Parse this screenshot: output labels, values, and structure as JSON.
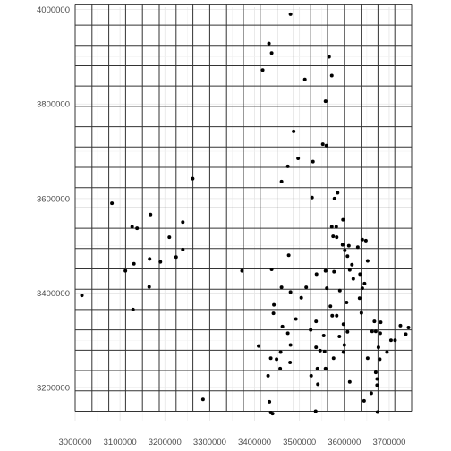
{
  "chart_data": {
    "type": "scatter",
    "title": "",
    "xlabel": "",
    "ylabel": "",
    "xlim": [
      3000000,
      3750000
    ],
    "ylim": [
      3130000,
      4005000
    ],
    "x_ticks": [
      3000000,
      3100000,
      3200000,
      3300000,
      3400000,
      3500000,
      3600000,
      3700000
    ],
    "x_tick_labels": [
      "3000000",
      "3100000",
      "3200000",
      "3300000",
      "3400000",
      "3500000",
      "3600000",
      "3700000"
    ],
    "y_ticks": [
      3200000,
      3400000,
      3600000,
      3800000,
      4000000
    ],
    "y_tick_labels": [
      "3200000",
      "3400000",
      "3600000",
      "3800000",
      "4000000"
    ],
    "background_grid": true,
    "overlay_grid": {
      "x_lines": [
        3000000,
        3037500,
        3075000,
        3112500,
        3150000,
        3187500,
        3225000,
        3262500,
        3300000,
        3337500,
        3375000,
        3412500,
        3450000,
        3487500,
        3525000,
        3562500,
        3600000,
        3637500,
        3675000,
        3712500,
        3750000
      ],
      "y_lines": [
        3150000,
        3193000,
        3236000,
        3279000,
        3322000,
        3365000,
        3408000,
        3451000,
        3494000,
        3537000,
        3580000,
        3623000,
        3666000,
        3709000,
        3752000,
        3795000,
        3838000,
        3881000,
        3924000,
        3967000,
        4010000
      ]
    },
    "points": [
      [
        3480000,
        3990000
      ],
      [
        3432000,
        3928000
      ],
      [
        3438000,
        3908000
      ],
      [
        3418000,
        3872000
      ],
      [
        3566000,
        3900000
      ],
      [
        3572000,
        3860000
      ],
      [
        3512000,
        3852000
      ],
      [
        3558000,
        3806000
      ],
      [
        3487000,
        3742000
      ],
      [
        3552000,
        3715000
      ],
      [
        3560000,
        3712000
      ],
      [
        3497000,
        3685000
      ],
      [
        3530000,
        3678000
      ],
      [
        3474000,
        3668000
      ],
      [
        3460000,
        3636000
      ],
      [
        3262000,
        3642000
      ],
      [
        3528000,
        3602000
      ],
      [
        3585000,
        3612000
      ],
      [
        3578000,
        3600000
      ],
      [
        3082000,
        3590000
      ],
      [
        3168000,
        3566000
      ],
      [
        3240000,
        3550000
      ],
      [
        3597000,
        3555000
      ],
      [
        3127000,
        3540000
      ],
      [
        3138000,
        3537000
      ],
      [
        3572000,
        3540000
      ],
      [
        3582000,
        3540000
      ],
      [
        3210000,
        3518000
      ],
      [
        3575000,
        3520000
      ],
      [
        3583000,
        3518000
      ],
      [
        3640000,
        3513000
      ],
      [
        3648000,
        3511000
      ],
      [
        3596000,
        3502000
      ],
      [
        3610000,
        3500000
      ],
      [
        3601000,
        3490000
      ],
      [
        3630000,
        3497000
      ],
      [
        3240000,
        3492000
      ],
      [
        3225000,
        3476000
      ],
      [
        3166000,
        3472000
      ],
      [
        3190000,
        3466000
      ],
      [
        3131000,
        3462000
      ],
      [
        3607000,
        3478000
      ],
      [
        3617000,
        3460000
      ],
      [
        3476000,
        3480000
      ],
      [
        3652000,
        3468000
      ],
      [
        3612000,
        3449000
      ],
      [
        3635000,
        3440000
      ],
      [
        3112000,
        3447000
      ],
      [
        3372000,
        3447000
      ],
      [
        3438000,
        3450000
      ],
      [
        3538000,
        3440000
      ],
      [
        3558000,
        3447000
      ],
      [
        3577000,
        3445000
      ],
      [
        3620000,
        3430000
      ],
      [
        3645000,
        3420000
      ],
      [
        3460000,
        3412000
      ],
      [
        3165000,
        3413000
      ],
      [
        3515000,
        3412000
      ],
      [
        3561000,
        3410000
      ],
      [
        3590000,
        3405000
      ],
      [
        3640000,
        3410000
      ],
      [
        3634000,
        3389000
      ],
      [
        3480000,
        3402000
      ],
      [
        3504000,
        3390000
      ],
      [
        3605000,
        3380000
      ],
      [
        3443000,
        3375000
      ],
      [
        3569000,
        3372000
      ],
      [
        3129000,
        3365000
      ],
      [
        3442000,
        3357000
      ],
      [
        3492000,
        3345000
      ],
      [
        3573000,
        3352000
      ],
      [
        3583000,
        3352000
      ],
      [
        3537000,
        3340000
      ],
      [
        3638000,
        3358000
      ],
      [
        3667000,
        3340000
      ],
      [
        3681000,
        3338000
      ],
      [
        3462000,
        3329000
      ],
      [
        3525000,
        3322000
      ],
      [
        3598000,
        3334000
      ],
      [
        3607000,
        3318000
      ],
      [
        3662000,
        3319000
      ],
      [
        3474000,
        3315000
      ],
      [
        3554000,
        3310000
      ],
      [
        3589000,
        3308000
      ],
      [
        3670000,
        3319000
      ],
      [
        3725000,
        3331000
      ],
      [
        3743000,
        3327000
      ],
      [
        3680000,
        3315000
      ],
      [
        3737000,
        3313000
      ],
      [
        3704000,
        3300000
      ],
      [
        3713000,
        3300000
      ],
      [
        3409000,
        3288000
      ],
      [
        3480000,
        3290000
      ],
      [
        3537000,
        3285000
      ],
      [
        3546000,
        3278000
      ],
      [
        3556000,
        3276000
      ],
      [
        3600000,
        3290000
      ],
      [
        3598000,
        3275000
      ],
      [
        3676000,
        3285000
      ],
      [
        3458000,
        3275000
      ],
      [
        3479000,
        3253000
      ],
      [
        3436000,
        3262000
      ],
      [
        3449000,
        3260000
      ],
      [
        3576000,
        3262000
      ],
      [
        3652000,
        3262000
      ],
      [
        3679000,
        3260000
      ],
      [
        3695000,
        3275000
      ],
      [
        3540000,
        3240000
      ],
      [
        3558000,
        3240000
      ],
      [
        3526000,
        3225000
      ],
      [
        3541000,
        3207000
      ],
      [
        3612000,
        3212000
      ],
      [
        3430000,
        3225000
      ],
      [
        3457000,
        3240000
      ],
      [
        3670000,
        3232000
      ],
      [
        3673000,
        3218000
      ],
      [
        3673000,
        3205000
      ],
      [
        3660000,
        3188000
      ],
      [
        3644000,
        3172000
      ],
      [
        3433000,
        3170000
      ],
      [
        3436000,
        3147000
      ],
      [
        3440000,
        3145000
      ],
      [
        3536000,
        3150000
      ],
      [
        3674000,
        3148000
      ],
      [
        3015000,
        3395000
      ],
      [
        3285000,
        3175000
      ]
    ]
  }
}
